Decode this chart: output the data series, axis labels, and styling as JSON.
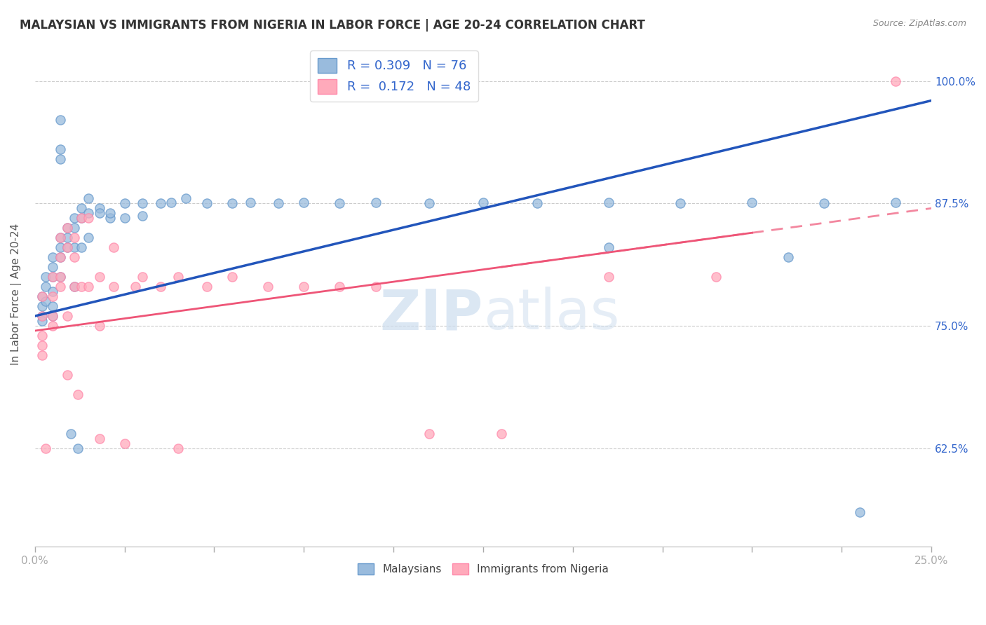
{
  "title": "MALAYSIAN VS IMMIGRANTS FROM NIGERIA IN LABOR FORCE | AGE 20-24 CORRELATION CHART",
  "source": "Source: ZipAtlas.com",
  "ylabel": "In Labor Force | Age 20-24",
  "ytick_labels": [
    "62.5%",
    "75.0%",
    "87.5%",
    "100.0%"
  ],
  "ytick_values": [
    0.625,
    0.75,
    0.875,
    1.0
  ],
  "xlim": [
    0.0,
    0.25
  ],
  "ylim": [
    0.525,
    1.04
  ],
  "blue_color": "#99BBDD",
  "blue_edge_color": "#6699CC",
  "pink_color": "#FFAABB",
  "pink_edge_color": "#FF88AA",
  "blue_line_color": "#2255BB",
  "pink_line_color": "#EE5577",
  "text_color": "#3366CC",
  "axis_color": "#AAAAAA",
  "watermark_color": "#CCDDEE",
  "malaysian_x": [
    0.002,
    0.002,
    0.002,
    0.002,
    0.003,
    0.003,
    0.003,
    0.005,
    0.005,
    0.005,
    0.005,
    0.005,
    0.005,
    0.007,
    0.007,
    0.007,
    0.007,
    0.009,
    0.009,
    0.009,
    0.011,
    0.011,
    0.011,
    0.011,
    0.013,
    0.013,
    0.013,
    0.015,
    0.015,
    0.015,
    0.018,
    0.018,
    0.021,
    0.021,
    0.025,
    0.025,
    0.03,
    0.03,
    0.035,
    0.038,
    0.042,
    0.048,
    0.055,
    0.06,
    0.068,
    0.075,
    0.085,
    0.095,
    0.11,
    0.125,
    0.14,
    0.16,
    0.18,
    0.2,
    0.22,
    0.24,
    0.007,
    0.007,
    0.007,
    0.01,
    0.012,
    0.16,
    0.21,
    0.23
  ],
  "malaysian_y": [
    0.78,
    0.77,
    0.76,
    0.755,
    0.8,
    0.79,
    0.775,
    0.82,
    0.81,
    0.8,
    0.785,
    0.77,
    0.76,
    0.84,
    0.83,
    0.82,
    0.8,
    0.85,
    0.84,
    0.83,
    0.86,
    0.85,
    0.83,
    0.79,
    0.87,
    0.86,
    0.83,
    0.88,
    0.865,
    0.84,
    0.87,
    0.865,
    0.86,
    0.865,
    0.875,
    0.86,
    0.875,
    0.862,
    0.875,
    0.876,
    0.88,
    0.875,
    0.875,
    0.876,
    0.875,
    0.876,
    0.875,
    0.876,
    0.875,
    0.876,
    0.875,
    0.876,
    0.875,
    0.876,
    0.875,
    0.876,
    0.96,
    0.93,
    0.92,
    0.64,
    0.625,
    0.83,
    0.82,
    0.56
  ],
  "nigerian_x": [
    0.002,
    0.002,
    0.002,
    0.002,
    0.005,
    0.005,
    0.005,
    0.005,
    0.007,
    0.007,
    0.007,
    0.007,
    0.009,
    0.009,
    0.009,
    0.011,
    0.011,
    0.011,
    0.013,
    0.013,
    0.015,
    0.015,
    0.018,
    0.018,
    0.022,
    0.022,
    0.028,
    0.03,
    0.035,
    0.04,
    0.048,
    0.055,
    0.065,
    0.075,
    0.085,
    0.095,
    0.11,
    0.13,
    0.16,
    0.19,
    0.002,
    0.003,
    0.009,
    0.012,
    0.018,
    0.025,
    0.04,
    0.24
  ],
  "nigerian_y": [
    0.78,
    0.76,
    0.74,
    0.72,
    0.8,
    0.78,
    0.76,
    0.75,
    0.84,
    0.82,
    0.8,
    0.79,
    0.85,
    0.83,
    0.76,
    0.84,
    0.82,
    0.79,
    0.86,
    0.79,
    0.86,
    0.79,
    0.8,
    0.75,
    0.83,
    0.79,
    0.79,
    0.8,
    0.79,
    0.8,
    0.79,
    0.8,
    0.79,
    0.79,
    0.79,
    0.79,
    0.64,
    0.64,
    0.8,
    0.8,
    0.73,
    0.625,
    0.7,
    0.68,
    0.635,
    0.63,
    0.625,
    1.0
  ],
  "blue_trend": [
    0.0,
    0.25,
    0.76,
    0.98
  ],
  "pink_trend": [
    0.0,
    0.2,
    0.745,
    0.845
  ]
}
